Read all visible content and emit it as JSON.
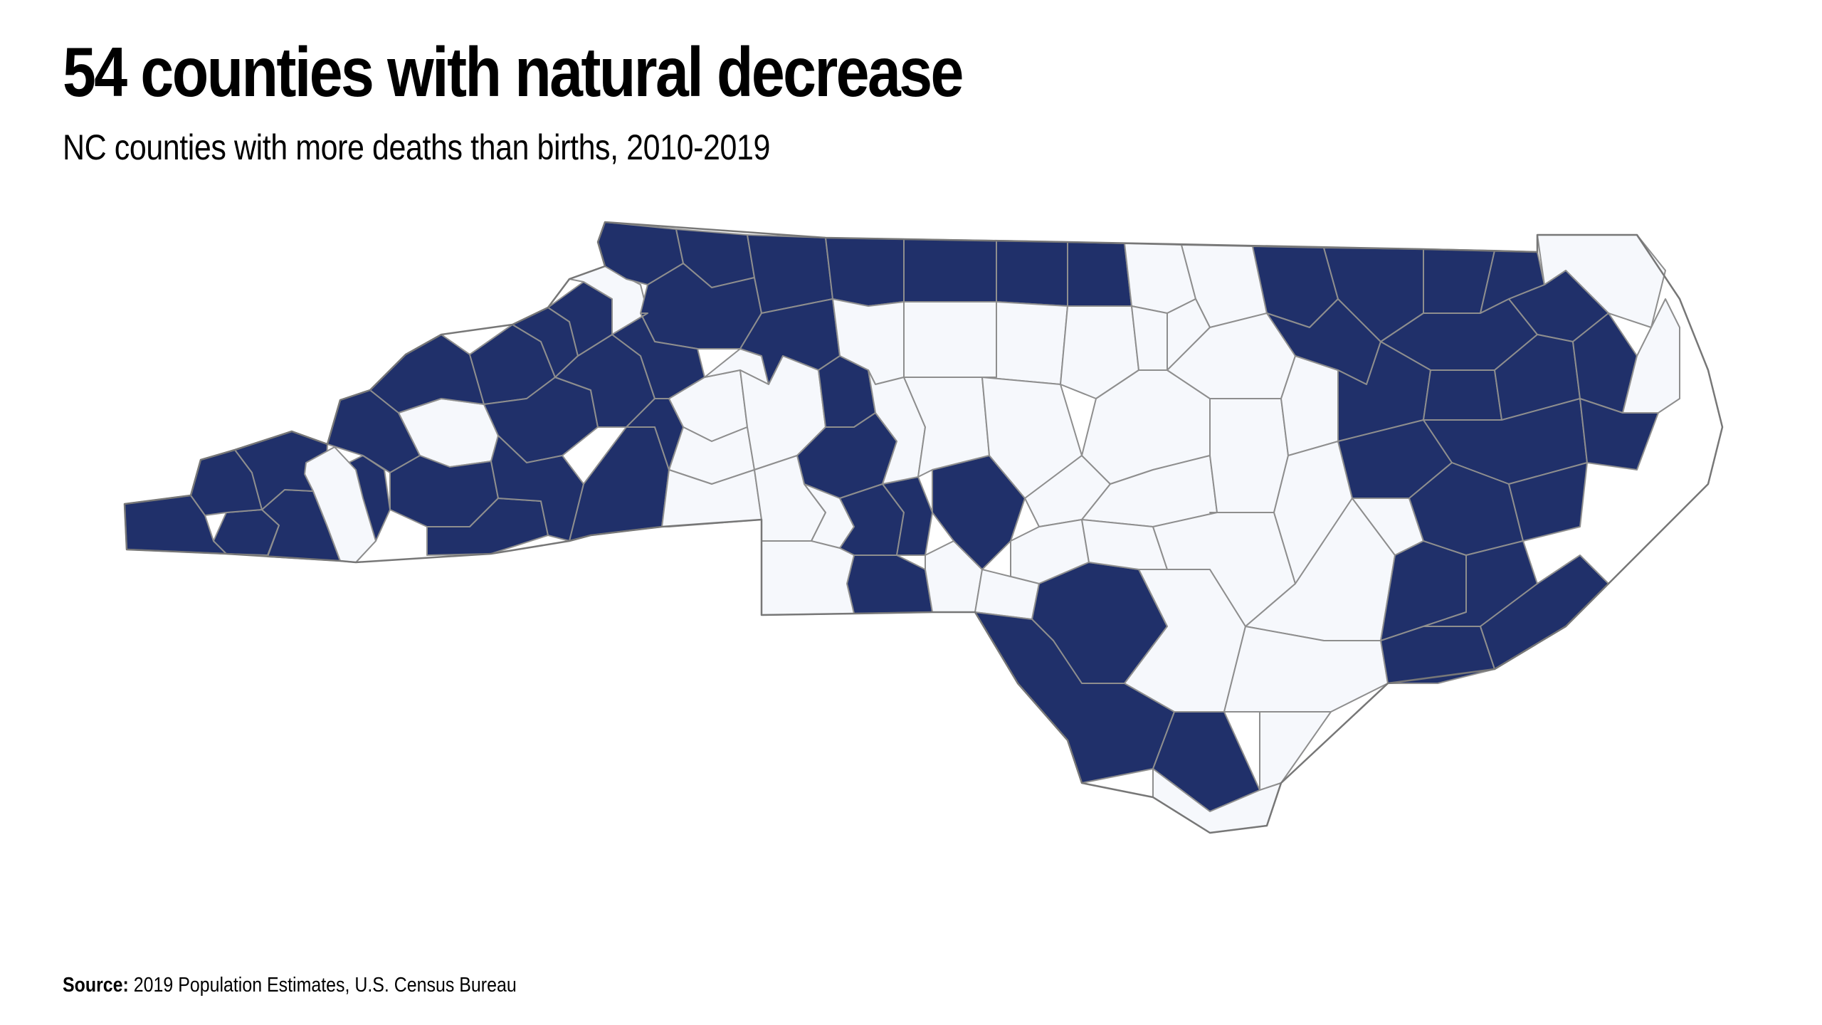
{
  "header": {
    "title": "54 counties with natural decrease",
    "subtitle": "NC counties with more deaths than births, 2010-2019"
  },
  "footer": {
    "source_label": "Source:",
    "source_text": "2019 Population Estimates, U.S. Census Bureau"
  },
  "map": {
    "state": "North Carolina",
    "natural_decrease_count": 54,
    "colors": {
      "natural_decrease": "#20306a",
      "other": "#f6f8fc",
      "border": "#8e8e8e"
    }
  }
}
